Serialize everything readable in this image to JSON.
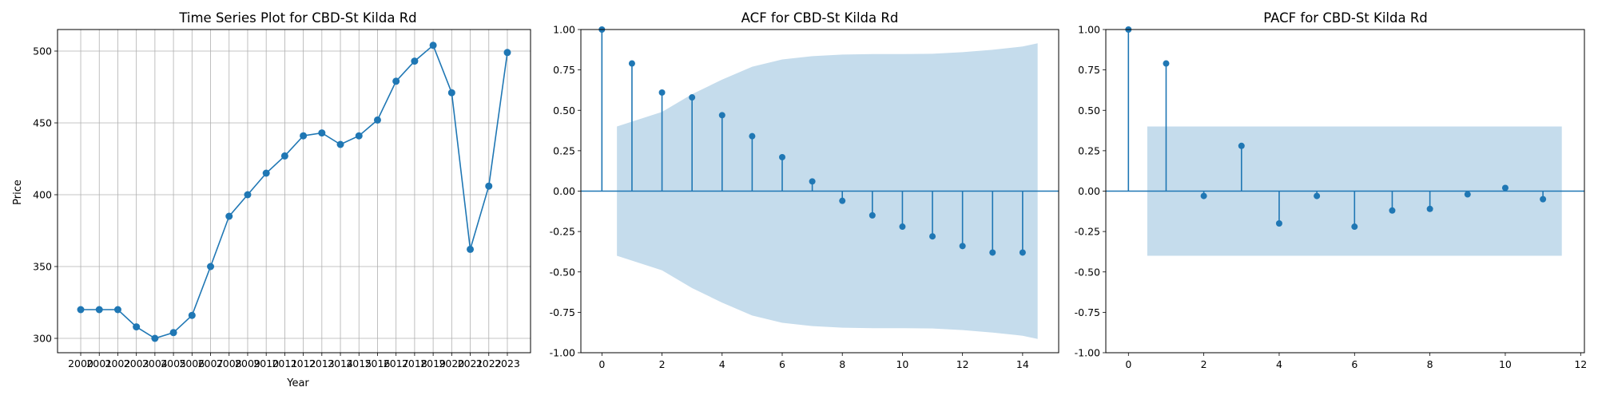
{
  "chart_data": [
    {
      "type": "line",
      "title": "Time Series Plot for CBD-St Kilda Rd",
      "xlabel": "Year",
      "ylabel": "Price",
      "grid": true,
      "x": [
        2000,
        2001,
        2002,
        2003,
        2004,
        2005,
        2006,
        2007,
        2008,
        2009,
        2010,
        2011,
        2012,
        2013,
        2014,
        2015,
        2016,
        2017,
        2018,
        2019,
        2020,
        2021,
        2022,
        2023
      ],
      "values": [
        320,
        320,
        320,
        308,
        300,
        304,
        316,
        350,
        385,
        400,
        415,
        427,
        441,
        443,
        435,
        441,
        452,
        479,
        493,
        504,
        471,
        362,
        406,
        499
      ],
      "xlim": [
        1998.75,
        2024.25
      ],
      "ylim": [
        290,
        515
      ],
      "yticks": [
        300,
        350,
        400,
        450,
        500
      ],
      "color": "#1f77b4"
    },
    {
      "type": "stem",
      "title": "ACF for CBD-St Kilda Rd",
      "xlabel": "",
      "ylabel": "",
      "lags": [
        0,
        1,
        2,
        3,
        4,
        5,
        6,
        7,
        8,
        9,
        10,
        11,
        12,
        13,
        14
      ],
      "values": [
        1.0,
        0.79,
        0.61,
        0.58,
        0.47,
        0.34,
        0.21,
        0.06,
        -0.06,
        -0.15,
        -0.22,
        -0.28,
        -0.34,
        -0.38,
        -0.38
      ],
      "confint_upper": [
        0.4,
        0.4,
        0.49,
        0.6,
        0.69,
        0.77,
        0.815,
        0.835,
        0.845,
        0.848,
        0.848,
        0.85,
        0.86,
        0.875,
        0.895,
        0.915
      ],
      "confint_x": [
        0.5,
        0.5,
        2,
        3,
        4,
        5,
        6,
        7,
        8,
        9,
        10,
        11,
        12,
        13,
        14,
        14.5
      ],
      "xlim": [
        -0.7,
        15.2
      ],
      "ylim": [
        -1.0,
        1.0
      ],
      "xticks": [
        0,
        2,
        4,
        6,
        8,
        10,
        12,
        14
      ],
      "yticks": [
        "-1.00",
        "-0.75",
        "-0.50",
        "-0.25",
        "0.00",
        "0.25",
        "0.50",
        "0.75",
        "1.00"
      ],
      "color": "#1f77b4",
      "band_color": "#c5dcec"
    },
    {
      "type": "stem",
      "title": "PACF for CBD-St Kilda Rd",
      "xlabel": "",
      "ylabel": "",
      "lags": [
        0,
        1,
        2,
        3,
        4,
        5,
        6,
        7,
        8,
        9,
        10,
        11
      ],
      "values": [
        1.0,
        0.79,
        -0.03,
        0.28,
        -0.2,
        -0.03,
        -0.22,
        -0.12,
        -0.11,
        -0.02,
        0.02,
        -0.05
      ],
      "confint_upper": [
        0.4,
        0.4
      ],
      "confint_x": [
        0.5,
        11.5
      ],
      "xlim": [
        -0.6,
        12.1
      ],
      "ylim": [
        -1.0,
        1.0
      ],
      "xticks": [
        0,
        2,
        4,
        6,
        8,
        10,
        12
      ],
      "yticks": [
        "-1.00",
        "-0.75",
        "-0.50",
        "-0.25",
        "0.00",
        "0.25",
        "0.50",
        "0.75",
        "1.00"
      ],
      "color": "#1f77b4",
      "band_color": "#c5dcec"
    }
  ]
}
